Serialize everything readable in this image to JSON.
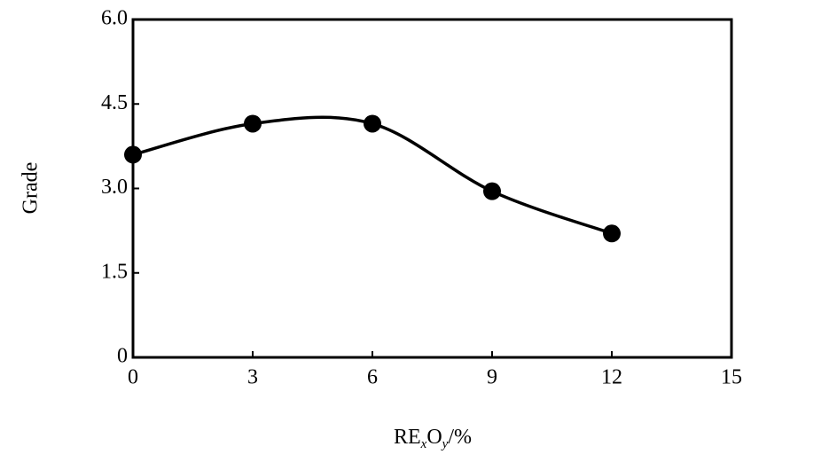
{
  "chart_data": {
    "type": "line",
    "ylabel": "Grade",
    "xlabel": [
      "RE",
      "x",
      "O",
      "y",
      "/%"
    ],
    "x": [
      0,
      3,
      6,
      9,
      12
    ],
    "series": [
      {
        "name": null,
        "color": "#000000",
        "values": [
          3.6,
          4.15,
          4.15,
          2.95,
          2.2
        ]
      }
    ],
    "xlim": [
      0,
      15
    ],
    "xticks": [
      0,
      3,
      6,
      9,
      12,
      15
    ],
    "ylim": [
      0,
      6
    ],
    "yticks": [
      0,
      {
        "value": 1.5,
        "label": "1.5"
      },
      {
        "value": 3,
        "label": "3.0"
      },
      {
        "value": 4.5,
        "label": "4.5"
      },
      {
        "value": 6,
        "label": "6.0"
      }
    ],
    "smooth": true
  }
}
